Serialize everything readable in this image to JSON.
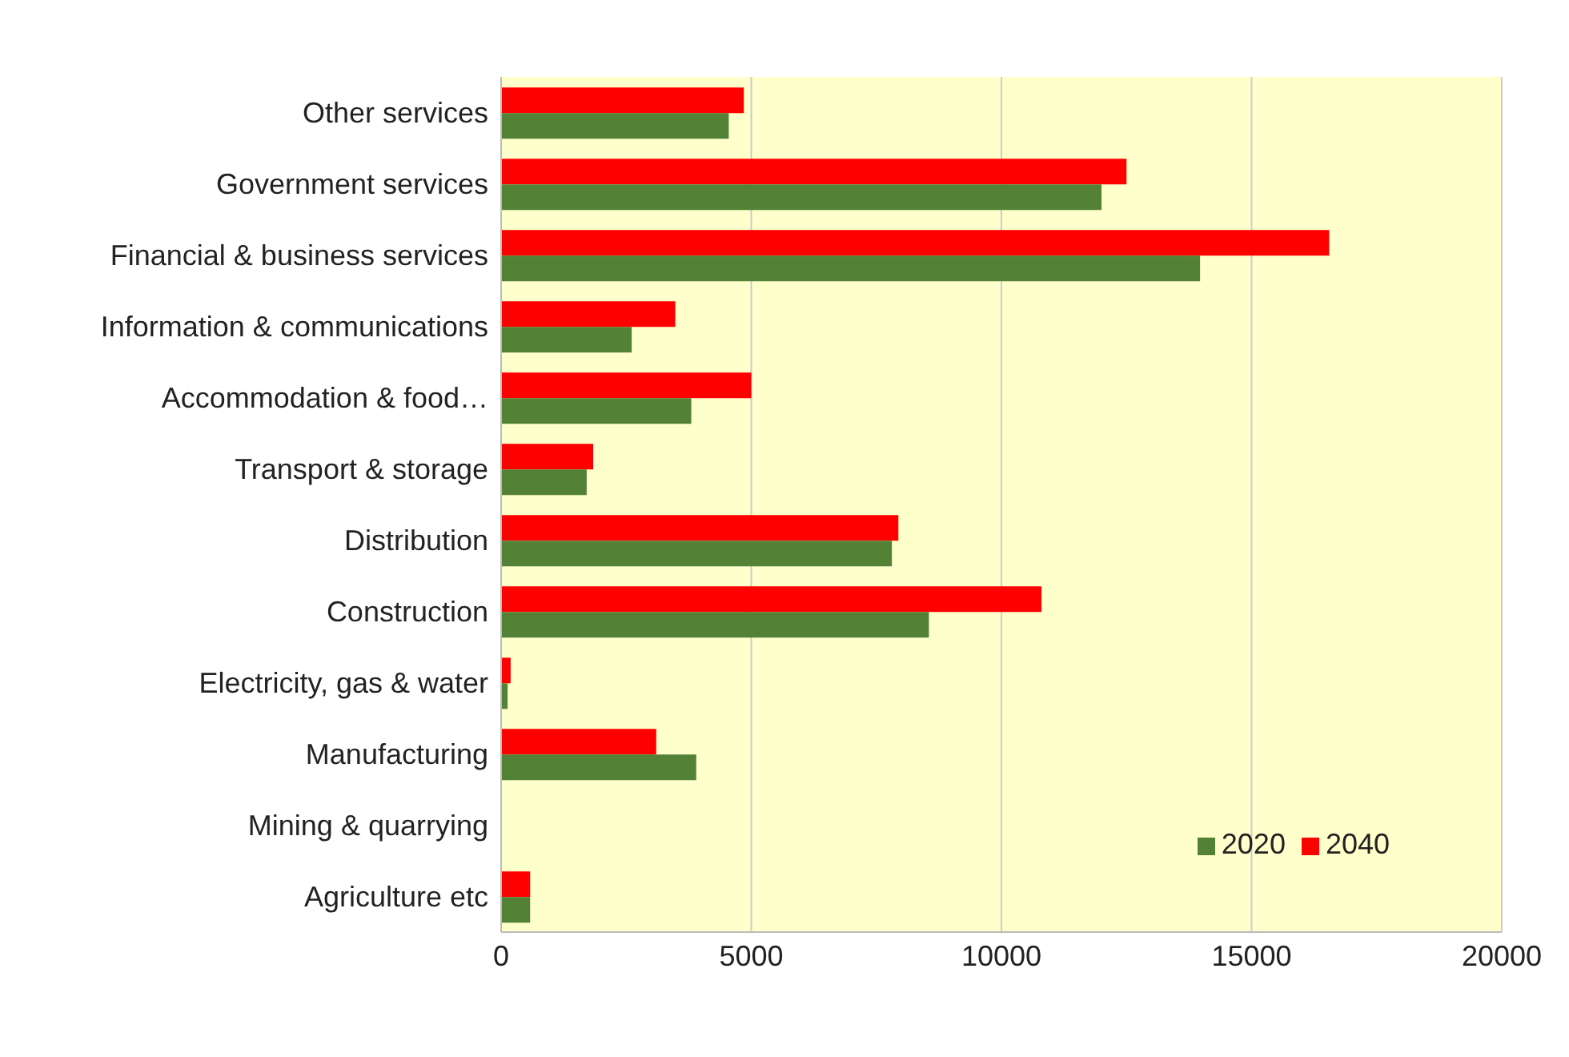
{
  "chart_data": {
    "type": "bar",
    "orientation": "horizontal",
    "categories": [
      "Other services",
      "Government services",
      "Financial & business services",
      "Information & communications",
      "Accommodation & food…",
      "Transport & storage",
      "Distribution",
      "Construction",
      "Electricity, gas & water",
      "Manufacturing",
      "Mining & quarrying",
      "Agriculture etc"
    ],
    "series": [
      {
        "name": "2040",
        "color": "#ff0000",
        "values": [
          4850,
          12500,
          16550,
          3480,
          5000,
          1840,
          7940,
          10800,
          190,
          3100,
          0,
          580
        ]
      },
      {
        "name": "2020",
        "color": "#538135",
        "values": [
          4550,
          12000,
          13970,
          2610,
          3800,
          1710,
          7810,
          8550,
          130,
          3900,
          0,
          580
        ]
      }
    ],
    "xlim": [
      0,
      20000
    ],
    "xticks": [
      0,
      5000,
      10000,
      15000,
      20000
    ],
    "grid": "x",
    "legend": "bottom right"
  }
}
